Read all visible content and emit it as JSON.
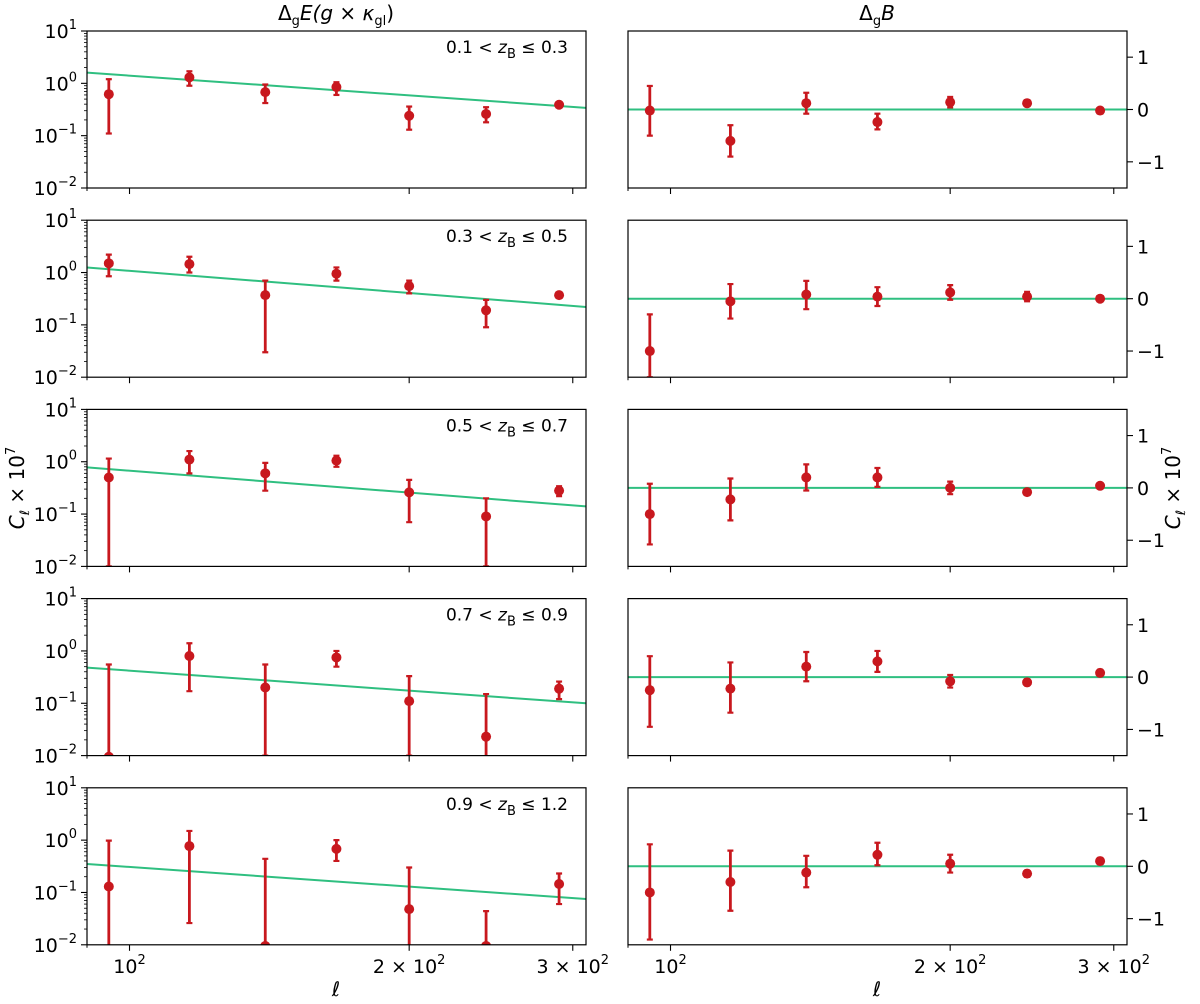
{
  "colors": {
    "points": "#c8181e",
    "model": "#2fbf80"
  },
  "column_titles": {
    "left": {
      "delta": "Δ",
      "sub": "g",
      "rest": "E(g × κ",
      "sub2": "gl",
      "close": ")"
    },
    "right": {
      "delta": "Δ",
      "sub": "g",
      "rest": "B"
    }
  },
  "ylabel": {
    "main": "C",
    "sub": "ℓ",
    "times": " × 10",
    "exp": "7"
  },
  "xlabel": "ℓ",
  "x_ticks": [
    {
      "value": 100,
      "base": "10",
      "exp": "2"
    },
    {
      "value": 200,
      "base": "2 × 10",
      "exp": "2"
    },
    {
      "value": 300,
      "base": "3 × 10",
      "exp": "2"
    }
  ],
  "y_ticks_log": [
    {
      "value": 10,
      "base": "10",
      "exp": "1"
    },
    {
      "value": 1,
      "base": "10",
      "exp": "0"
    },
    {
      "value": 0.1,
      "base": "10",
      "exp": "−1"
    },
    {
      "value": 0.01,
      "base": "10",
      "exp": "−2"
    }
  ],
  "y_ticks_lin": [
    {
      "value": 1,
      "label": "1"
    },
    {
      "value": 0,
      "label": "0"
    },
    {
      "value": -1,
      "label": "−1"
    }
  ],
  "chart_data": [
    {
      "type": "scatter",
      "panel": "E-mode",
      "row": 0,
      "label_pre": "0.1 < ",
      "label_var": "z",
      "label_sub": "B",
      "label_post": " ≤ 0.3",
      "xscale": "log",
      "yscale": "log",
      "xlim": [
        90,
        310
      ],
      "ylim": [
        0.01,
        10
      ],
      "points": [
        {
          "x": 95,
          "y": 0.62,
          "lo": 0.11,
          "hi": 1.2
        },
        {
          "x": 116,
          "y": 1.3,
          "lo": 0.9,
          "hi": 1.7
        },
        {
          "x": 140,
          "y": 0.68,
          "lo": 0.42,
          "hi": 0.95
        },
        {
          "x": 167,
          "y": 0.85,
          "lo": 0.6,
          "hi": 1.05
        },
        {
          "x": 200,
          "y": 0.24,
          "lo": 0.13,
          "hi": 0.36
        },
        {
          "x": 242,
          "y": 0.26,
          "lo": 0.18,
          "hi": 0.35
        },
        {
          "x": 290,
          "y": 0.39,
          "lo": 0.35,
          "hi": 0.43
        }
      ],
      "model": {
        "x": [
          90,
          310
        ],
        "y": [
          1.6,
          0.34
        ]
      }
    },
    {
      "type": "scatter",
      "panel": "B-mode",
      "row": 0,
      "xscale": "log",
      "yscale": "linear",
      "xlim": [
        90,
        310
      ],
      "ylim": [
        -1.5,
        1.5
      ],
      "points": [
        {
          "x": 95,
          "y": -0.02,
          "lo": -0.5,
          "hi": 0.45
        },
        {
          "x": 116,
          "y": -0.6,
          "lo": -0.9,
          "hi": -0.3
        },
        {
          "x": 140,
          "y": 0.12,
          "lo": -0.08,
          "hi": 0.32
        },
        {
          "x": 167,
          "y": -0.24,
          "lo": -0.38,
          "hi": -0.08
        },
        {
          "x": 200,
          "y": 0.14,
          "lo": 0.04,
          "hi": 0.24
        },
        {
          "x": 242,
          "y": 0.12,
          "lo": 0.06,
          "hi": 0.18
        },
        {
          "x": 290,
          "y": -0.02,
          "lo": -0.07,
          "hi": 0.03
        }
      ],
      "model": {
        "x": [
          90,
          310
        ],
        "y": [
          0,
          0
        ]
      }
    },
    {
      "type": "scatter",
      "panel": "E-mode",
      "row": 1,
      "label_pre": "0.3 < ",
      "label_var": "z",
      "label_sub": "B",
      "label_post": " ≤ 0.5",
      "xscale": "log",
      "yscale": "log",
      "xlim": [
        90,
        310
      ],
      "ylim": [
        0.01,
        10
      ],
      "points": [
        {
          "x": 95,
          "y": 1.5,
          "lo": 0.85,
          "hi": 2.2
        },
        {
          "x": 116,
          "y": 1.45,
          "lo": 1.0,
          "hi": 2.0
        },
        {
          "x": 140,
          "y": 0.37,
          "lo": 0.03,
          "hi": 0.7
        },
        {
          "x": 167,
          "y": 0.95,
          "lo": 0.7,
          "hi": 1.25
        },
        {
          "x": 200,
          "y": 0.55,
          "lo": 0.4,
          "hi": 0.7
        },
        {
          "x": 242,
          "y": 0.19,
          "lo": 0.09,
          "hi": 0.3
        },
        {
          "x": 290,
          "y": 0.37,
          "lo": 0.33,
          "hi": 0.41
        }
      ],
      "model": {
        "x": [
          90,
          310
        ],
        "y": [
          1.25,
          0.22
        ]
      }
    },
    {
      "type": "scatter",
      "panel": "B-mode",
      "row": 1,
      "xscale": "log",
      "yscale": "linear",
      "xlim": [
        90,
        310
      ],
      "ylim": [
        -1.5,
        1.5
      ],
      "points": [
        {
          "x": 95,
          "y": -1.0,
          "lo": -1.5,
          "hi": -0.3
        },
        {
          "x": 116,
          "y": -0.05,
          "lo": -0.38,
          "hi": 0.28
        },
        {
          "x": 140,
          "y": 0.08,
          "lo": -0.2,
          "hi": 0.34
        },
        {
          "x": 167,
          "y": 0.04,
          "lo": -0.14,
          "hi": 0.22
        },
        {
          "x": 200,
          "y": 0.12,
          "lo": -0.02,
          "hi": 0.26
        },
        {
          "x": 242,
          "y": 0.04,
          "lo": -0.05,
          "hi": 0.13
        },
        {
          "x": 290,
          "y": 0.0,
          "lo": -0.04,
          "hi": 0.04
        }
      ],
      "model": {
        "x": [
          90,
          310
        ],
        "y": [
          0,
          0
        ]
      }
    },
    {
      "type": "scatter",
      "panel": "E-mode",
      "row": 2,
      "label_pre": "0.5 < ",
      "label_var": "z",
      "label_sub": "B",
      "label_post": " ≤ 0.7",
      "xscale": "log",
      "yscale": "log",
      "xlim": [
        90,
        310
      ],
      "ylim": [
        0.01,
        10
      ],
      "points": [
        {
          "x": 95,
          "y": 0.5,
          "lo": 0.01,
          "hi": 1.15
        },
        {
          "x": 116,
          "y": 1.1,
          "lo": 0.6,
          "hi": 1.6
        },
        {
          "x": 140,
          "y": 0.6,
          "lo": 0.28,
          "hi": 0.95
        },
        {
          "x": 167,
          "y": 1.05,
          "lo": 0.8,
          "hi": 1.3
        },
        {
          "x": 200,
          "y": 0.26,
          "lo": 0.07,
          "hi": 0.45
        },
        {
          "x": 242,
          "y": 0.09,
          "lo": 0.01,
          "hi": 0.2
        },
        {
          "x": 290,
          "y": 0.28,
          "lo": 0.22,
          "hi": 0.34
        }
      ],
      "model": {
        "x": [
          90,
          310
        ],
        "y": [
          0.78,
          0.14
        ]
      }
    },
    {
      "type": "scatter",
      "panel": "B-mode",
      "row": 2,
      "xscale": "log",
      "yscale": "linear",
      "xlim": [
        90,
        310
      ],
      "ylim": [
        -1.5,
        1.5
      ],
      "points": [
        {
          "x": 95,
          "y": -0.5,
          "lo": -1.08,
          "hi": 0.08
        },
        {
          "x": 116,
          "y": -0.22,
          "lo": -0.62,
          "hi": 0.18
        },
        {
          "x": 140,
          "y": 0.2,
          "lo": -0.05,
          "hi": 0.45
        },
        {
          "x": 167,
          "y": 0.2,
          "lo": 0.02,
          "hi": 0.38
        },
        {
          "x": 200,
          "y": 0.0,
          "lo": -0.12,
          "hi": 0.12
        },
        {
          "x": 242,
          "y": -0.08,
          "lo": -0.13,
          "hi": -0.03
        },
        {
          "x": 290,
          "y": 0.04,
          "lo": 0.0,
          "hi": 0.08
        }
      ],
      "model": {
        "x": [
          90,
          310
        ],
        "y": [
          0,
          0
        ]
      }
    },
    {
      "type": "scatter",
      "panel": "E-mode",
      "row": 3,
      "label_pre": "0.7 < ",
      "label_var": "z",
      "label_sub": "B",
      "label_post": " ≤ 0.9",
      "xscale": "log",
      "yscale": "log",
      "xlim": [
        90,
        310
      ],
      "ylim": [
        0.01,
        10
      ],
      "points": [
        {
          "x": 95,
          "y": 0.0095,
          "lo": 0.005,
          "hi": 0.55
        },
        {
          "x": 116,
          "y": 0.8,
          "lo": 0.17,
          "hi": 1.4
        },
        {
          "x": 140,
          "y": 0.2,
          "lo": 0.01,
          "hi": 0.55
        },
        {
          "x": 167,
          "y": 0.75,
          "lo": 0.5,
          "hi": 1.0
        },
        {
          "x": 200,
          "y": 0.11,
          "lo": 0.01,
          "hi": 0.33
        },
        {
          "x": 242,
          "y": 0.023,
          "lo": 0.005,
          "hi": 0.15
        },
        {
          "x": 290,
          "y": 0.19,
          "lo": 0.12,
          "hi": 0.26
        }
      ],
      "model": {
        "x": [
          90,
          310
        ],
        "y": [
          0.48,
          0.1
        ]
      }
    },
    {
      "type": "scatter",
      "panel": "B-mode",
      "row": 3,
      "xscale": "log",
      "yscale": "linear",
      "xlim": [
        90,
        310
      ],
      "ylim": [
        -1.5,
        1.5
      ],
      "points": [
        {
          "x": 95,
          "y": -0.25,
          "lo": -0.95,
          "hi": 0.4
        },
        {
          "x": 116,
          "y": -0.22,
          "lo": -0.68,
          "hi": 0.28
        },
        {
          "x": 140,
          "y": 0.2,
          "lo": -0.08,
          "hi": 0.48
        },
        {
          "x": 167,
          "y": 0.3,
          "lo": 0.1,
          "hi": 0.5
        },
        {
          "x": 200,
          "y": -0.08,
          "lo": -0.2,
          "hi": 0.04
        },
        {
          "x": 242,
          "y": -0.1,
          "lo": -0.16,
          "hi": -0.04
        },
        {
          "x": 290,
          "y": 0.08,
          "lo": 0.02,
          "hi": 0.14
        }
      ],
      "model": {
        "x": [
          90,
          310
        ],
        "y": [
          0,
          0
        ]
      }
    },
    {
      "type": "scatter",
      "panel": "E-mode",
      "row": 4,
      "label_pre": "0.9 < ",
      "label_var": "z",
      "label_sub": "B",
      "label_post": " ≤ 1.2",
      "xscale": "log",
      "yscale": "log",
      "xlim": [
        90,
        310
      ],
      "ylim": [
        0.01,
        10
      ],
      "points": [
        {
          "x": 95,
          "y": 0.13,
          "lo": 0.005,
          "hi": 0.98
        },
        {
          "x": 116,
          "y": 0.77,
          "lo": 0.026,
          "hi": 1.5
        },
        {
          "x": 140,
          "y": 0.0095,
          "lo": 0.005,
          "hi": 0.44
        },
        {
          "x": 167,
          "y": 0.68,
          "lo": 0.4,
          "hi": 1.0
        },
        {
          "x": 200,
          "y": 0.048,
          "lo": 0.005,
          "hi": 0.3
        },
        {
          "x": 242,
          "y": 0.0095,
          "lo": 0.005,
          "hi": 0.044
        },
        {
          "x": 290,
          "y": 0.145,
          "lo": 0.06,
          "hi": 0.23
        }
      ],
      "model": {
        "x": [
          90,
          310
        ],
        "y": [
          0.35,
          0.075
        ]
      }
    },
    {
      "type": "scatter",
      "panel": "B-mode",
      "row": 4,
      "xscale": "log",
      "yscale": "linear",
      "xlim": [
        90,
        310
      ],
      "ylim": [
        -1.5,
        1.5
      ],
      "points": [
        {
          "x": 95,
          "y": -0.5,
          "lo": -1.4,
          "hi": 0.42
        },
        {
          "x": 116,
          "y": -0.3,
          "lo": -0.85,
          "hi": 0.3
        },
        {
          "x": 140,
          "y": -0.12,
          "lo": -0.4,
          "hi": 0.2
        },
        {
          "x": 167,
          "y": 0.22,
          "lo": 0.02,
          "hi": 0.45
        },
        {
          "x": 200,
          "y": 0.05,
          "lo": -0.12,
          "hi": 0.22
        },
        {
          "x": 242,
          "y": -0.14,
          "lo": -0.2,
          "hi": -0.08
        },
        {
          "x": 290,
          "y": 0.1,
          "lo": 0.04,
          "hi": 0.16
        }
      ],
      "model": {
        "x": [
          90,
          310
        ],
        "y": [
          0,
          0
        ]
      }
    }
  ]
}
